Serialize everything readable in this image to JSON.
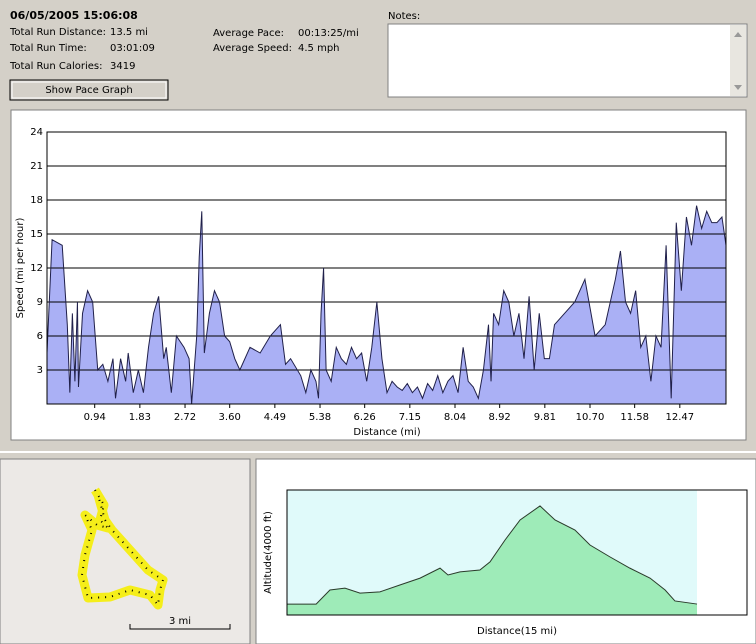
{
  "header": {
    "datetime": "06/05/2005  15:06:08",
    "stats": [
      {
        "label": "Total Run Distance:",
        "value": "13.5 mi"
      },
      {
        "label": "Total Run Time:",
        "value": "03:01:09"
      },
      {
        "label": "Total Run Calories:",
        "value": "3419"
      },
      {
        "label": "Average Pace:",
        "value": "00:13:25/mi"
      },
      {
        "label": "Average Speed:",
        "value": "4.5 mph"
      }
    ]
  },
  "notes": {
    "label": "Notes:"
  },
  "button": {
    "label": "Show Pace Graph"
  },
  "map": {
    "scale": "3 mi"
  },
  "chart_data": [
    {
      "type": "area",
      "xlabel": "Distance (mi)",
      "ylabel": "Speed (mi per hour)",
      "color": "#aab0f5",
      "line_color": "#20204a",
      "grid": true,
      "xlim": [
        0,
        13.38
      ],
      "ylim": [
        0,
        24
      ],
      "xticks": [
        0.94,
        1.83,
        2.72,
        {
          "value": 3.6,
          "label": "3.60"
        },
        4.49,
        5.38,
        6.26,
        7.15,
        8.04,
        8.92,
        9.81,
        {
          "value": 10.7,
          "label": "10.70"
        },
        11.58,
        12.47
      ],
      "yticks": [
        3,
        6,
        9,
        12,
        15,
        18,
        21,
        24
      ],
      "x": [
        0,
        0.1,
        0.3,
        0.4,
        0.45,
        0.5,
        0.55,
        0.6,
        0.62,
        0.7,
        0.8,
        0.9,
        1.0,
        1.1,
        1.2,
        1.3,
        1.35,
        1.45,
        1.55,
        1.6,
        1.7,
        1.8,
        1.9,
        2.0,
        2.1,
        2.2,
        2.3,
        2.35,
        2.45,
        2.55,
        2.7,
        2.8,
        2.85,
        2.95,
        3.0,
        3.05,
        3.1,
        3.2,
        3.3,
        3.4,
        3.5,
        3.6,
        3.7,
        3.8,
        4.0,
        4.2,
        4.4,
        4.5,
        4.6,
        4.7,
        4.8,
        5.0,
        5.1,
        5.2,
        5.3,
        5.35,
        5.4,
        5.45,
        5.5,
        5.6,
        5.7,
        5.8,
        5.9,
        6.0,
        6.1,
        6.2,
        6.3,
        6.4,
        6.5,
        6.6,
        6.7,
        6.8,
        6.9,
        7.0,
        7.1,
        7.2,
        7.3,
        7.4,
        7.5,
        7.6,
        7.7,
        7.8,
        7.9,
        8.0,
        8.1,
        8.2,
        8.3,
        8.4,
        8.5,
        8.6,
        8.7,
        8.75,
        8.8,
        8.9,
        9.0,
        9.1,
        9.2,
        9.3,
        9.4,
        9.5,
        9.6,
        9.7,
        9.8,
        9.9,
        10.0,
        10.2,
        10.4,
        10.6,
        10.8,
        11.0,
        11.2,
        11.3,
        11.4,
        11.5,
        11.6,
        11.7,
        11.8,
        11.9,
        12.0,
        12.1,
        12.2,
        12.3,
        12.4,
        12.5,
        12.6,
        12.7,
        12.8,
        12.9,
        13.0,
        13.1,
        13.2,
        13.3,
        13.38
      ],
      "values": [
        4.5,
        14.5,
        14,
        7,
        1,
        8,
        2,
        9,
        1.5,
        8,
        10,
        9,
        3,
        3.5,
        2,
        4,
        0.5,
        4,
        2,
        4.5,
        1,
        3,
        1,
        5,
        8,
        9.5,
        4,
        5,
        1,
        6,
        5,
        4,
        0,
        6,
        13,
        17,
        4.5,
        8,
        10,
        9,
        6,
        5.5,
        4,
        3,
        5,
        4.5,
        6,
        6.5,
        7,
        3.5,
        4,
        2.5,
        1,
        3,
        2,
        0.5,
        8,
        12,
        3,
        2,
        5,
        4,
        3.5,
        5,
        4,
        4.5,
        2,
        5,
        9,
        4,
        1,
        2,
        1.5,
        1.2,
        1.8,
        1,
        1.5,
        0.5,
        1.8,
        1.2,
        2.5,
        1,
        2,
        2.5,
        1,
        5,
        2,
        1.5,
        0.5,
        3,
        7,
        2,
        8,
        7,
        10,
        9,
        6,
        8,
        4,
        9.5,
        3,
        8,
        4,
        4,
        7,
        8,
        9,
        11,
        6,
        7,
        11,
        13.5,
        9,
        8,
        10,
        5,
        6,
        2,
        6,
        5,
        14,
        0.5,
        16,
        10,
        16.5,
        14,
        17.5,
        15.5,
        17,
        16,
        16,
        16.5,
        14
      ]
    },
    {
      "type": "area",
      "xlabel": "Distance(15 mi)",
      "ylabel": "Altitude(4000 ft)",
      "color": "#9eebb8",
      "line_color": "#2a3a2a",
      "background": "#e0fafa",
      "xlim": [
        0,
        15
      ],
      "ylim": [
        0,
        4000
      ],
      "x": [
        0,
        0.95,
        1.4,
        1.89,
        2.38,
        3.03,
        3.68,
        4.34,
        4.99,
        5.25,
        5.64,
        6.29,
        6.62,
        7.11,
        7.6,
        8.25,
        8.74,
        9.39,
        9.88,
        10.53,
        11.18,
        11.84,
        12.33,
        12.65,
        13.37
      ],
      "values": [
        350,
        350,
        800,
        860,
        700,
        740,
        960,
        1180,
        1500,
        1280,
        1380,
        1440,
        1700,
        2400,
        3040,
        3490,
        3040,
        2720,
        2240,
        1860,
        1500,
        1180,
        800,
        450,
        350
      ]
    }
  ]
}
